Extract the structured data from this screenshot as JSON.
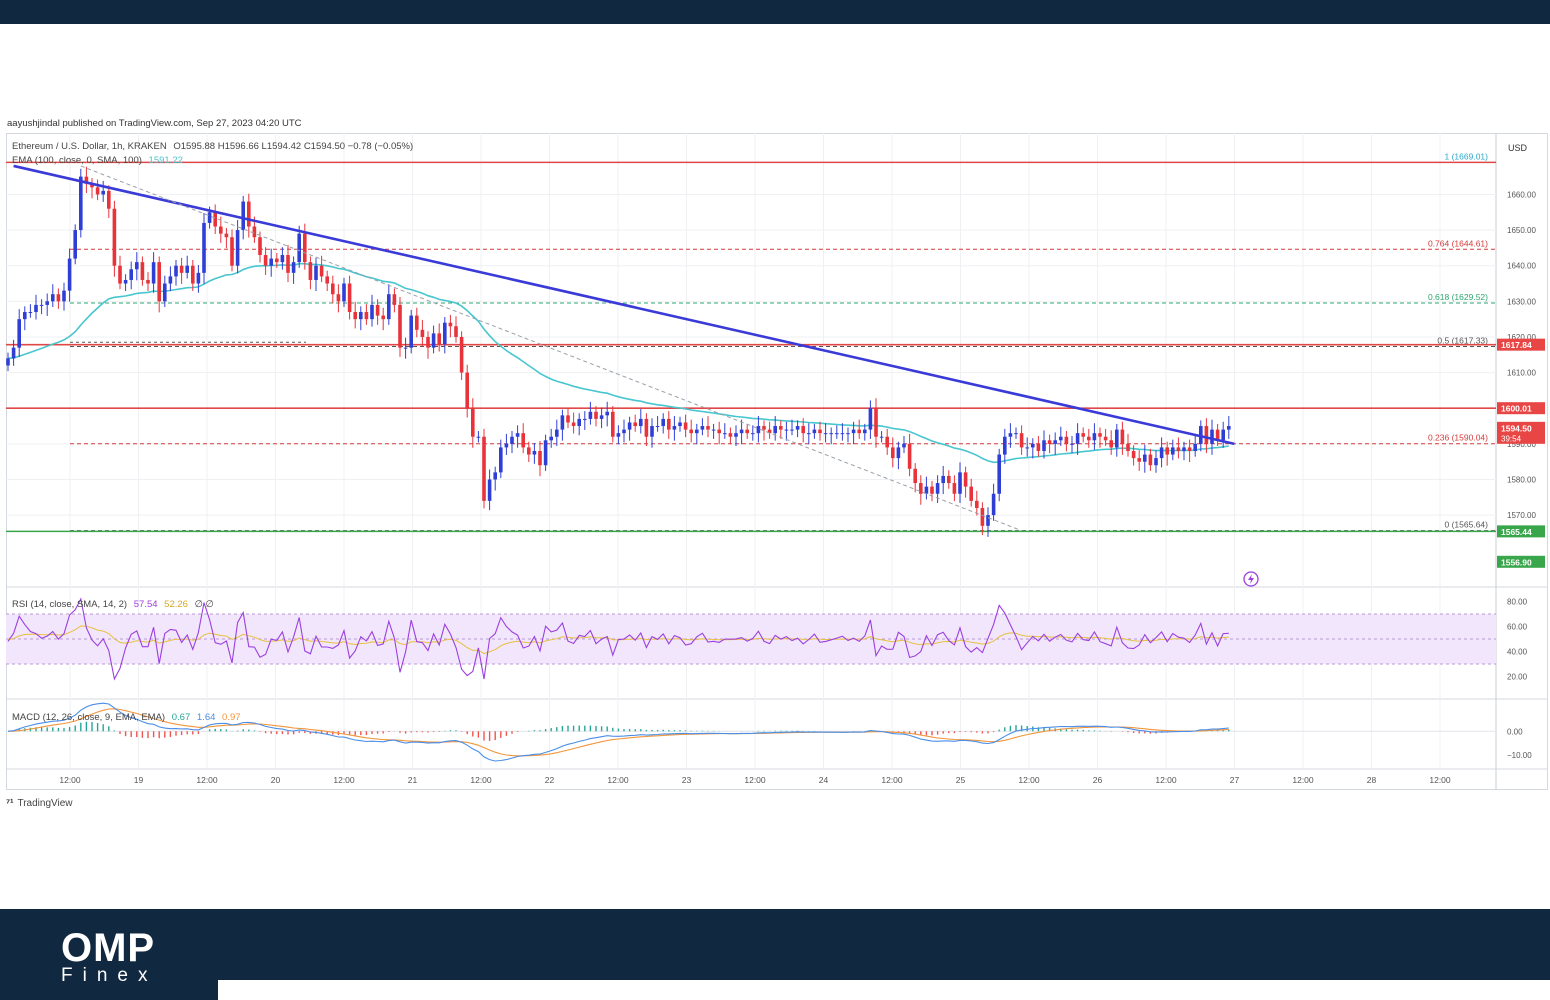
{
  "header": {
    "published": "aayushjindal published on TradingView.com, Sep 27, 2023 04:20 UTC"
  },
  "chart_data": {
    "type": "candlestick",
    "title": "Ethereum / U.S. Dollar, 1h, KRAKEN",
    "ohlc_label": "O1595.88 H1596.66 L1594.42 C1594.50 −0.78 (−0.05%)",
    "ema_label": "EMA (100, close, 0, SMA, 100)",
    "ema_value": "1591.22",
    "currency": "USD",
    "price_ylim": [
      1556,
      1675
    ],
    "price_ticks": [
      "1660.00",
      "1650.00",
      "1640.00",
      "1630.00",
      "1620.00",
      "1610.00",
      "1600.00",
      "1590.00",
      "1580.00",
      "1570.00"
    ],
    "x_tick_labels": [
      "12:00",
      "19",
      "12:00",
      "20",
      "12:00",
      "21",
      "12:00",
      "22",
      "12:00",
      "23",
      "12:00",
      "24",
      "12:00",
      "25",
      "12:00",
      "26",
      "12:00",
      "27",
      "12:00",
      "28",
      "12:00"
    ],
    "price_markers": [
      {
        "label": "1617.84",
        "price": 1617.84,
        "color": "#e84545"
      },
      {
        "label": "1600.01",
        "price": 1600.01,
        "color": "#e84545"
      },
      {
        "label": "1594.50",
        "sub": "39:54",
        "price": 1594.5,
        "color": "#e84545"
      },
      {
        "label": "1565.44",
        "price": 1565.44,
        "color": "#3aa64c"
      },
      {
        "label": "1556.90",
        "price": 1556.9,
        "color": "#3aa64c"
      }
    ],
    "fibonacci": [
      {
        "label": "1 (1669.01)",
        "price": 1669.01,
        "color": "#29a7c9"
      },
      {
        "label": "0.764 (1644.61)",
        "price": 1644.61,
        "color": "#d43a3a"
      },
      {
        "label": "0.618 (1629.52)",
        "price": 1629.52,
        "color": "#2ea66f"
      },
      {
        "label": "0.5 (1617.33)",
        "price": 1617.33,
        "color": "#555555"
      },
      {
        "label": "0.236 (1590.04)",
        "price": 1590.04,
        "color": "#d43a3a"
      },
      {
        "label": "0 (1565.64)",
        "price": 1565.64,
        "color": "#555555"
      }
    ],
    "horizontal_lines": [
      {
        "price": 1669,
        "color": "#e04848"
      },
      {
        "price": 1617.84,
        "color": "#e04848"
      },
      {
        "price": 1600.01,
        "color": "#e04848"
      },
      {
        "price": 1565.44,
        "color": "#3aa64c"
      }
    ],
    "trendline": {
      "from": [
        1,
        1668
      ],
      "to": [
        219,
        1590
      ],
      "color": "#3a3ad8"
    },
    "candles_close": [
      1614,
      1617,
      1625,
      1627,
      1627,
      1629,
      1629,
      1630,
      1632,
      1630,
      1633,
      1642,
      1650,
      1665,
      1663,
      1662,
      1660,
      1661,
      1656,
      1640,
      1635,
      1636,
      1639,
      1641,
      1636,
      1635,
      1641,
      1630,
      1635,
      1637,
      1640,
      1638,
      1640,
      1635,
      1638,
      1652,
      1655,
      1651,
      1649,
      1648,
      1640,
      1650,
      1658,
      1651,
      1648,
      1643,
      1640,
      1642,
      1641,
      1643,
      1638,
      1641,
      1649,
      1641,
      1636,
      1640,
      1637,
      1635,
      1632,
      1630,
      1635,
      1627,
      1625,
      1627,
      1625,
      1629,
      1626,
      1625,
      1632,
      1629,
      1617,
      1617,
      1626,
      1622,
      1620,
      1617,
      1621,
      1618,
      1624,
      1623,
      1620,
      1610,
      1600,
      1592,
      1592,
      1574,
      1580,
      1582,
      1589,
      1590,
      1592,
      1593,
      1589,
      1587,
      1588,
      1584,
      1591,
      1592,
      1594,
      1598,
      1596,
      1595,
      1597,
      1597,
      1599,
      1597,
      1598,
      1599,
      1592,
      1593,
      1594,
      1596,
      1595,
      1597,
      1592,
      1595,
      1595,
      1597,
      1594,
      1595,
      1596,
      1594,
      1593,
      1594,
      1595,
      1594,
      1594,
      1593,
      1593,
      1592,
      1593,
      1594,
      1593,
      1593,
      1595,
      1594,
      1593,
      1595,
      1594,
      1594,
      1594,
      1595,
      1593,
      1593,
      1594,
      1593,
      1593,
      1593,
      1593,
      1593,
      1593,
      1594,
      1593,
      1594,
      1600,
      1592,
      1592,
      1589,
      1586,
      1589,
      1590,
      1583,
      1579,
      1576,
      1578,
      1576,
      1579,
      1581,
      1579,
      1576,
      1582,
      1578,
      1574,
      1572,
      1567,
      1570,
      1576,
      1587,
      1592,
      1593,
      1593,
      1589,
      1589,
      1590,
      1588,
      1591,
      1590,
      1591,
      1592,
      1590,
      1590,
      1593,
      1592,
      1591,
      1593,
      1592,
      1591,
      1589,
      1594,
      1590,
      1588,
      1586,
      1585,
      1587,
      1584,
      1586,
      1589,
      1587,
      1589,
      1588,
      1589,
      1588,
      1590,
      1595,
      1590,
      1594,
      1591,
      1594,
      1595
    ],
    "rsi": {
      "label": "RSI (14, close, SMA, 14, 2)",
      "value": "57.54",
      "sma_value": "52.26",
      "extra": "∅ ∅",
      "ticks": [
        "80.00",
        "60.00",
        "40.00",
        "20.00"
      ],
      "ylim": [
        10,
        90
      ],
      "band": [
        30,
        70
      ]
    },
    "macd": {
      "label": "MACD (12, 26, close, 9, EMA, EMA)",
      "hist_value": "0.67",
      "macd_value": "1.64",
      "signal_value": "0.97",
      "ticks": [
        "0.00",
        "−10.00"
      ],
      "ylim": [
        -16,
        12
      ]
    },
    "colors": {
      "up": "#2f3fd6",
      "down": "#e8333a",
      "ema": "#48c6cf",
      "rsi": "#9c3fe0",
      "rsi_ma": "#e7c040",
      "macd": "#4a8ee8",
      "signal": "#f2953a"
    }
  },
  "footer": {
    "tradingview": "TradingView",
    "brand": "OMP",
    "brand_sub": "Finex"
  }
}
